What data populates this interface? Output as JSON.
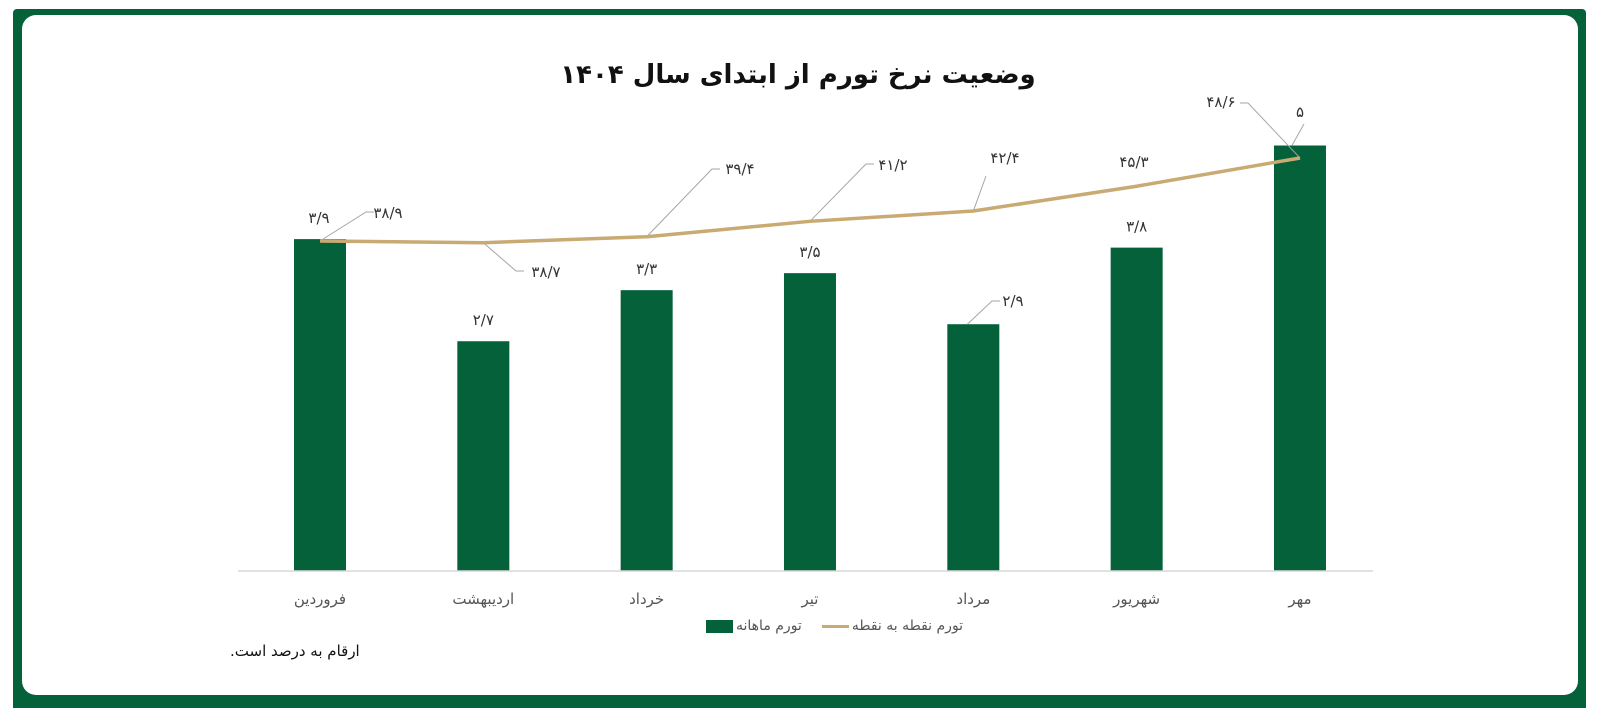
{
  "title": "وضعیت نرخ تورم از ابتدای سال ۱۴۰۴",
  "footnote": "ارقام به درصد است.",
  "colors": {
    "frame": "#05613a",
    "bar": "#05613a",
    "line": "#c9aa72",
    "leader": "#a6a6a6",
    "axis": "#d9d9d9"
  },
  "legend": {
    "monthly_label": "تورم ماهانه",
    "yoy_label": "تورم نقطه به نقطه"
  },
  "chart_data": {
    "type": "bar+line",
    "title": "وضعیت نرخ تورم از ابتدای سال ۱۴۰۴",
    "xlabel": "",
    "ylabel": "",
    "categories": [
      "فروردین",
      "اردیبهشت",
      "خرداد",
      "تیر",
      "مرداد",
      "شهریور",
      "مهر"
    ],
    "series": [
      {
        "name": "تورم ماهانه",
        "type": "bar",
        "values": [
          3.9,
          2.7,
          3.3,
          3.5,
          2.9,
          3.8,
          5.0
        ],
        "labels": [
          "۳/۹",
          "۲/۷",
          "۳/۳",
          "۳/۵",
          "۲/۹",
          "۳/۸",
          "۵"
        ]
      },
      {
        "name": "تورم نقطه به نقطه",
        "type": "line",
        "values": [
          38.9,
          38.7,
          39.4,
          41.2,
          42.4,
          45.3,
          48.6
        ],
        "labels": [
          "۳۸/۹",
          "۳۸/۷",
          "۳۹/۴",
          "۴۱/۲",
          "۴۲/۴",
          "۴۵/۳",
          "۴۸/۶"
        ]
      }
    ],
    "grid": false,
    "legend_position": "bottom",
    "axis_visible": false,
    "unit": "percent"
  }
}
